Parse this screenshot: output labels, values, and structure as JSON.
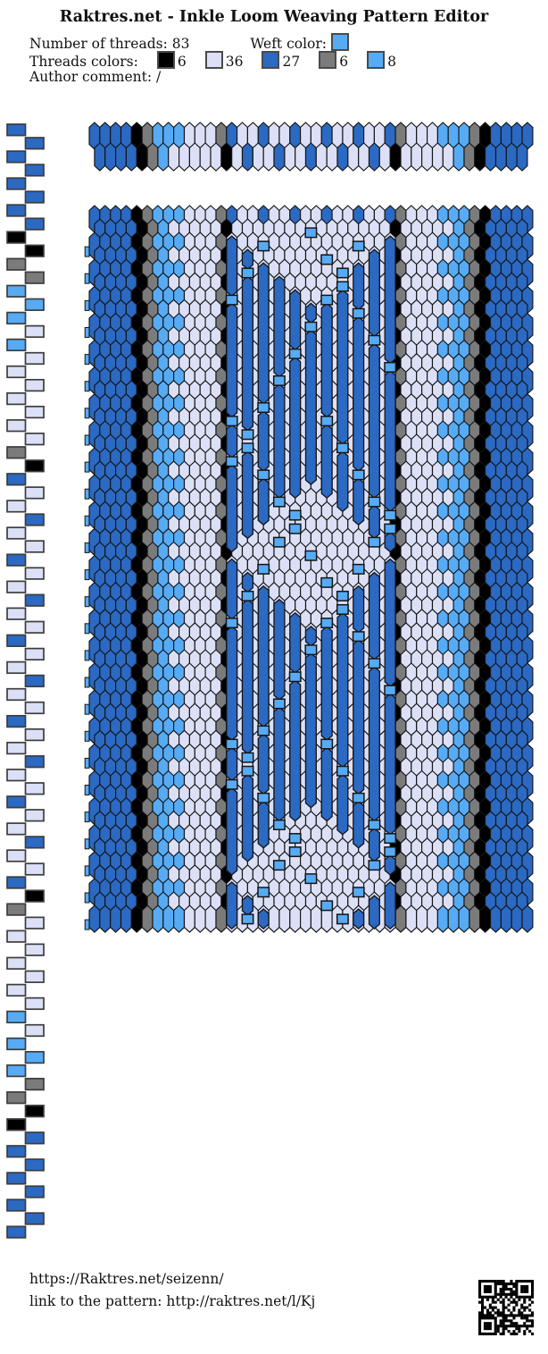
{
  "header": {
    "title": "Raktres.net - Inkle Loom Weaving Pattern Editor",
    "num_threads_label": "Number of threads:",
    "num_threads_value": "83",
    "weft_label": "Weft color:",
    "weft_color": "#57abf4",
    "palette_label": "Threads colors:",
    "palette": [
      {
        "name": "black",
        "hex": "#000000",
        "count": "6"
      },
      {
        "name": "lavender",
        "hex": "#dce0f6",
        "count": "36"
      },
      {
        "name": "blue",
        "hex": "#2b69c2",
        "count": "27"
      },
      {
        "name": "gray",
        "hex": "#7b7b7b",
        "count": "6"
      },
      {
        "name": "light-blue",
        "hex": "#57abf4",
        "count": "8"
      }
    ],
    "comment_label": "Author comment:",
    "comment_value": "/"
  },
  "pattern": {
    "thread_count": 83,
    "weft_hex": "#57abf4",
    "palette_hex": [
      "#000000",
      "#dce0f6",
      "#2b69c2",
      "#7b7b7b",
      "#57abf4"
    ],
    "thread_colors": [
      2,
      2,
      2,
      2,
      2,
      2,
      2,
      2,
      0,
      0,
      3,
      3,
      4,
      4,
      4,
      1,
      4,
      1,
      1,
      1,
      1,
      1,
      1,
      1,
      3,
      0,
      2,
      1,
      1,
      2,
      1,
      1,
      2,
      1,
      1,
      2,
      1,
      1,
      2,
      1,
      1,
      2,
      1,
      1,
      2,
      1,
      1,
      2,
      1,
      1,
      2,
      1,
      1,
      2,
      1,
      1,
      2,
      0,
      3,
      1,
      1,
      1,
      1,
      1,
      1,
      1,
      4,
      1,
      4,
      4,
      4,
      3,
      3,
      0,
      0,
      2,
      2,
      2,
      2,
      2,
      2,
      2,
      2
    ],
    "pickup": {
      "first_pattern_thread": 27,
      "pattern_thread_step": 3,
      "pattern_thread_count": 11,
      "row_period": 24,
      "rows": 53
    }
  },
  "footer": {
    "site_url": "https://Raktres.net/seizenn/",
    "link_label": "link to the pattern:",
    "pattern_url": "http://raktres.net/l/Kj"
  }
}
